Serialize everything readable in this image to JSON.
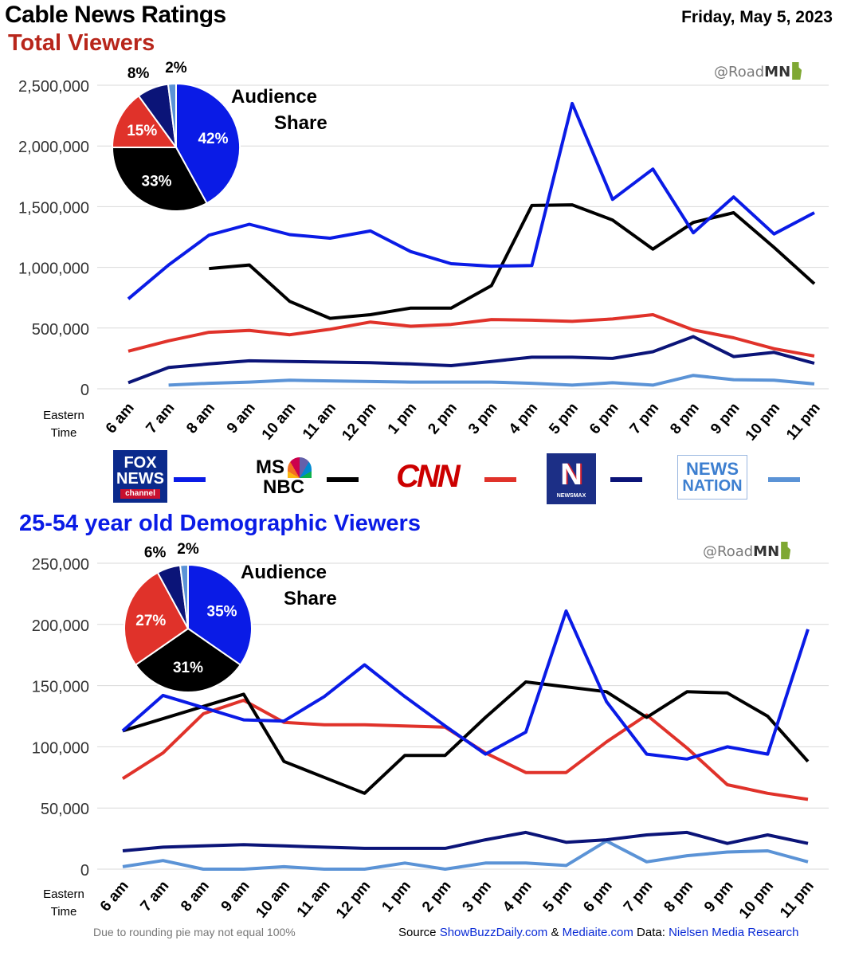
{
  "header": {
    "title": "Cable News Ratings",
    "date": "Friday, May 5, 2023",
    "handle_prefix": "@Road",
    "handle_bold": "MN"
  },
  "colors": {
    "fox": "#0a1be6",
    "msnbc": "#000000",
    "cnn": "#e0322a",
    "newsmax": "#0b1478",
    "newsnation": "#5b93d6"
  },
  "legend": [
    {
      "network": "FOX NEWS",
      "logo_lines": [
        "FOX",
        "NEWS",
        "channel"
      ],
      "color": "#0a1be6"
    },
    {
      "network": "MSNBC",
      "logo_lines": [
        "MS",
        "NBC"
      ],
      "color": "#000000"
    },
    {
      "network": "CNN",
      "logo_lines": [
        "CNN"
      ],
      "color": "#e0322a"
    },
    {
      "network": "NEWSMAX",
      "logo_lines": [
        "N",
        "NEWSMAX"
      ],
      "color": "#0b1478"
    },
    {
      "network": "NEWSNATION",
      "logo_lines": [
        "NEWS",
        "NATION"
      ],
      "color": "#5b93d6"
    }
  ],
  "footer": {
    "note": "Due to rounding pie may not equal 100%",
    "source_label": "Source",
    "source1": "ShowBuzzDaily.com",
    "amp": "&",
    "source2": "Mediaite.com",
    "data_label": "Data:",
    "data_source": "Nielsen Media Research"
  },
  "chart_data": [
    {
      "type": "line",
      "title": "Total Viewers",
      "xlabel": "Eastern Time",
      "categories": [
        "6 am",
        "7 am",
        "8 am",
        "9 am",
        "10 am",
        "11 am",
        "12 pm",
        "1 pm",
        "2 pm",
        "3 pm",
        "4 pm",
        "5 pm",
        "6 pm",
        "7 pm",
        "8 pm",
        "9 pm",
        "10 pm",
        "11 pm"
      ],
      "ylim": [
        0,
        2500000
      ],
      "yticks": [
        0,
        500000,
        1000000,
        1500000,
        2000000,
        2500000
      ],
      "ytick_labels": [
        "0",
        "500,000",
        "1,000,000",
        "1,500,000",
        "2,000,000",
        "2,500,000"
      ],
      "grid": true,
      "series": [
        {
          "key": "fox",
          "values": [
            740000,
            1020000,
            1265000,
            1355000,
            1270000,
            1240000,
            1300000,
            1130000,
            1030000,
            1010000,
            1015000,
            2350000,
            1560000,
            1810000,
            1285000,
            1580000,
            1275000,
            1450000
          ]
        },
        {
          "key": "msnbc",
          "values": [
            null,
            null,
            990000,
            1020000,
            720000,
            580000,
            610000,
            665000,
            665000,
            850000,
            1510000,
            1515000,
            1390000,
            1150000,
            1370000,
            1450000,
            1165000,
            865000
          ]
        },
        {
          "key": "cnn",
          "values": [
            310000,
            395000,
            465000,
            480000,
            445000,
            490000,
            550000,
            515000,
            530000,
            570000,
            565000,
            555000,
            575000,
            610000,
            485000,
            420000,
            330000,
            270000
          ]
        },
        {
          "key": "newsmax",
          "values": [
            50000,
            175000,
            205000,
            230000,
            225000,
            220000,
            215000,
            205000,
            190000,
            225000,
            260000,
            260000,
            250000,
            305000,
            430000,
            265000,
            300000,
            210000
          ]
        },
        {
          "key": "newsnation",
          "values": [
            null,
            30000,
            45000,
            55000,
            70000,
            65000,
            60000,
            55000,
            55000,
            55000,
            45000,
            30000,
            50000,
            30000,
            110000,
            75000,
            70000,
            40000
          ]
        }
      ],
      "pie": {
        "title_lines": [
          "Audience",
          "Share"
        ],
        "slices": [
          {
            "key": "fox",
            "value": 42,
            "label": "42%"
          },
          {
            "key": "msnbc",
            "value": 33,
            "label": "33%"
          },
          {
            "key": "cnn",
            "value": 15,
            "label": "15%"
          },
          {
            "key": "newsmax",
            "value": 8,
            "label": "8%"
          },
          {
            "key": "newsnation",
            "value": 2,
            "label": "2%"
          }
        ]
      }
    },
    {
      "type": "line",
      "title": "25-54 year old Demographic Viewers",
      "xlabel": "Eastern Time",
      "categories": [
        "6 am",
        "7 am",
        "8 am",
        "9 am",
        "10 am",
        "11 am",
        "12 pm",
        "1 pm",
        "2 pm",
        "3 pm",
        "4 pm",
        "5 pm",
        "6 pm",
        "7 pm",
        "8 pm",
        "9 pm",
        "10 pm",
        "11 pm"
      ],
      "ylim": [
        0,
        250000
      ],
      "yticks": [
        0,
        50000,
        100000,
        150000,
        200000,
        250000
      ],
      "ytick_labels": [
        "0",
        "50,000",
        "100,000",
        "150,000",
        "200,000",
        "250,000"
      ],
      "grid": true,
      "series": [
        {
          "key": "fox",
          "values": [
            113000,
            142000,
            132000,
            122000,
            121000,
            141000,
            167000,
            141000,
            117000,
            94000,
            112000,
            211000,
            137000,
            94000,
            90000,
            100000,
            94000,
            196000
          ]
        },
        {
          "key": "msnbc",
          "values": [
            113000,
            123000,
            133000,
            143000,
            88000,
            75000,
            62000,
            93000,
            93000,
            124000,
            153000,
            149000,
            145000,
            124000,
            145000,
            144000,
            125000,
            88000
          ]
        },
        {
          "key": "cnn",
          "values": [
            74000,
            95000,
            127000,
            138000,
            120000,
            118000,
            118000,
            117000,
            116000,
            95000,
            79000,
            79000,
            104000,
            126000,
            99000,
            69000,
            62000,
            57000
          ]
        },
        {
          "key": "newsmax",
          "values": [
            15000,
            18000,
            19000,
            20000,
            19000,
            18000,
            17000,
            17000,
            17000,
            24000,
            30000,
            22000,
            24000,
            28000,
            30000,
            21000,
            28000,
            21000
          ]
        },
        {
          "key": "newsnation",
          "values": [
            2000,
            7000,
            0,
            0,
            2000,
            0,
            0,
            5000,
            0,
            5000,
            5000,
            3000,
            23000,
            6000,
            11000,
            14000,
            15000,
            6000
          ]
        }
      ],
      "pie": {
        "title_lines": [
          "Audience",
          "Share"
        ],
        "slices": [
          {
            "key": "fox",
            "value": 35,
            "label": "35%"
          },
          {
            "key": "msnbc",
            "value": 31,
            "label": "31%"
          },
          {
            "key": "cnn",
            "value": 27,
            "label": "27%"
          },
          {
            "key": "newsmax",
            "value": 6,
            "label": "6%"
          },
          {
            "key": "newsnation",
            "value": 2,
            "label": "2%"
          }
        ]
      }
    }
  ]
}
